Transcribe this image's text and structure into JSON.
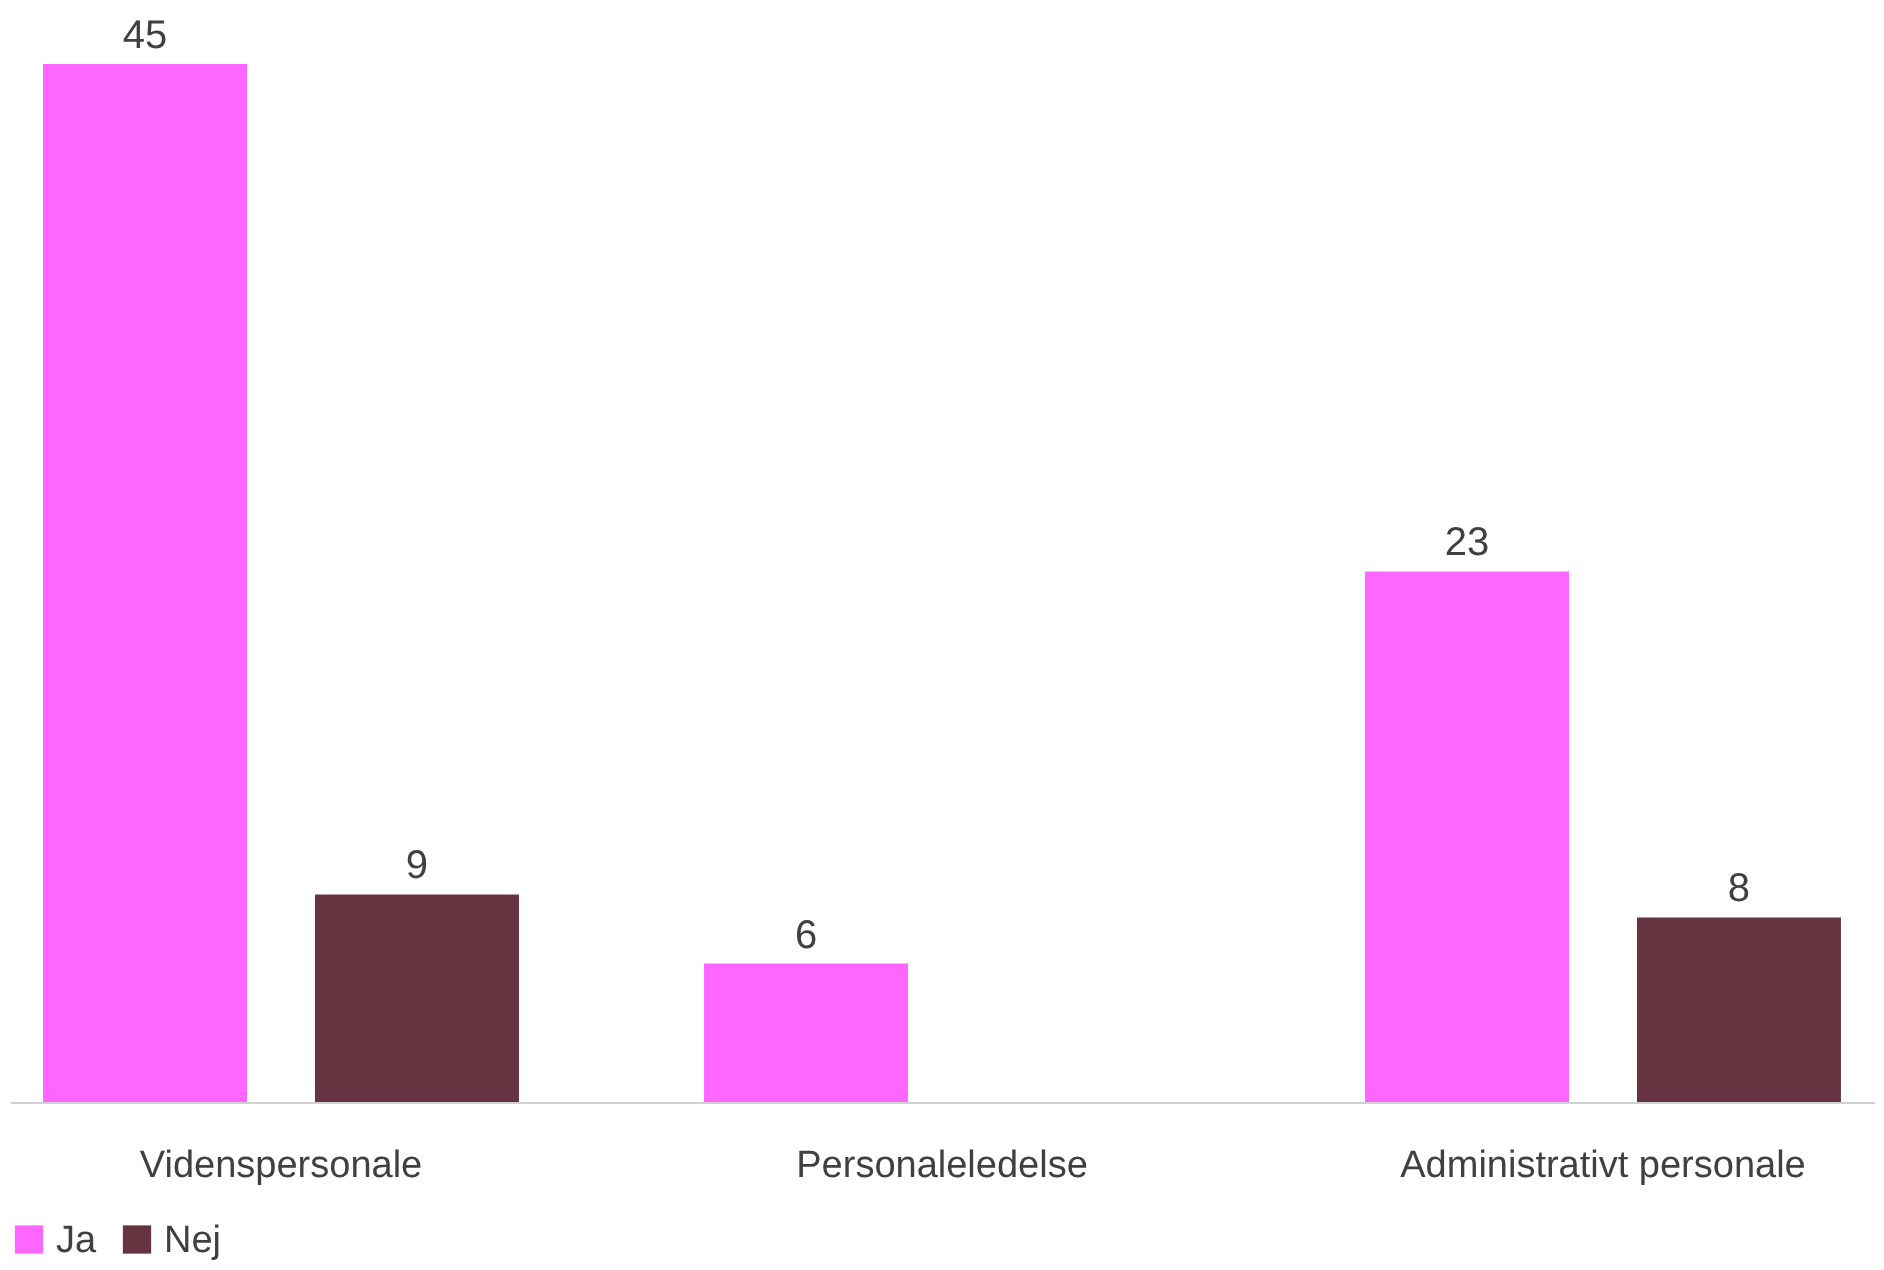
{
  "chart_data": {
    "type": "bar",
    "categories": [
      "Videnspersonale",
      "Personaleledelse",
      "Administrativt personale"
    ],
    "series": [
      {
        "name": "Ja",
        "color": "#ff66ff",
        "values": [
          45,
          6,
          23
        ]
      },
      {
        "name": "Nej",
        "color": "#663340",
        "values": [
          9,
          null,
          8
        ]
      }
    ],
    "data_labels": true,
    "legend": "bottom",
    "grid": false
  }
}
